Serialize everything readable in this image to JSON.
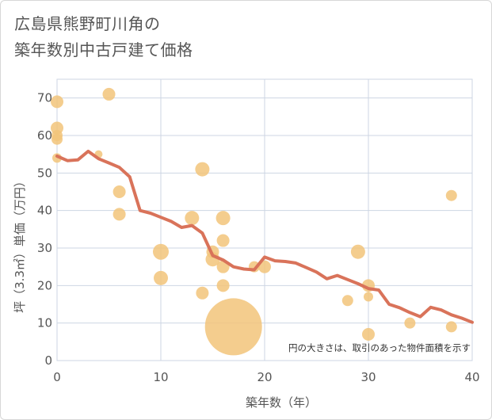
{
  "title_lines": [
    "広島県熊野町川角の",
    "築年数別中古戸建て価格"
  ],
  "chart_data": {
    "type": "scatter",
    "xlabel": "築年数（年）",
    "ylabel": "坪（3.3㎡）単価（万円）",
    "xlim": [
      0,
      40
    ],
    "ylim": [
      0,
      75
    ],
    "xticks": [
      0,
      10,
      20,
      30,
      40
    ],
    "yticks": [
      0,
      10,
      20,
      30,
      40,
      50,
      60,
      70
    ],
    "grid": true,
    "note": "円の大きさは、取引のあった物件面積を示す",
    "colors": {
      "bubble": "#f2c47a",
      "line": "#d9735a",
      "grid": "#cdd6e3"
    },
    "bubbles": [
      {
        "x": 0,
        "y": 69,
        "size": 8
      },
      {
        "x": 0,
        "y": 62,
        "size": 8
      },
      {
        "x": 0,
        "y": 60,
        "size": 7
      },
      {
        "x": 0,
        "y": 59,
        "size": 7
      },
      {
        "x": 0,
        "y": 54,
        "size": 6
      },
      {
        "x": 4,
        "y": 55,
        "size": 5
      },
      {
        "x": 5,
        "y": 71,
        "size": 8
      },
      {
        "x": 6,
        "y": 45,
        "size": 8
      },
      {
        "x": 6,
        "y": 39,
        "size": 8
      },
      {
        "x": 10,
        "y": 29,
        "size": 10
      },
      {
        "x": 10,
        "y": 22,
        "size": 9
      },
      {
        "x": 13,
        "y": 38,
        "size": 9
      },
      {
        "x": 14,
        "y": 51,
        "size": 9
      },
      {
        "x": 14,
        "y": 18,
        "size": 8
      },
      {
        "x": 15,
        "y": 29,
        "size": 8
      },
      {
        "x": 15,
        "y": 27,
        "size": 9
      },
      {
        "x": 16,
        "y": 38,
        "size": 9
      },
      {
        "x": 16,
        "y": 32,
        "size": 8
      },
      {
        "x": 16,
        "y": 25,
        "size": 8
      },
      {
        "x": 16,
        "y": 20,
        "size": 8
      },
      {
        "x": 17,
        "y": 9,
        "size": 36
      },
      {
        "x": 19,
        "y": 25,
        "size": 7
      },
      {
        "x": 20,
        "y": 25,
        "size": 8
      },
      {
        "x": 28,
        "y": 16,
        "size": 7
      },
      {
        "x": 29,
        "y": 29,
        "size": 9
      },
      {
        "x": 30,
        "y": 20,
        "size": 8
      },
      {
        "x": 30,
        "y": 17,
        "size": 6
      },
      {
        "x": 30,
        "y": 7,
        "size": 8
      },
      {
        "x": 34,
        "y": 10,
        "size": 7
      },
      {
        "x": 38,
        "y": 44,
        "size": 7
      },
      {
        "x": 38,
        "y": 9,
        "size": 7
      }
    ],
    "trend_line": {
      "x": [
        0,
        1,
        2,
        3,
        4,
        5,
        6,
        7,
        8,
        9,
        10,
        11,
        12,
        13,
        14,
        15,
        16,
        17,
        18,
        19,
        20,
        21,
        22,
        23,
        24,
        25,
        26,
        27,
        28,
        29,
        30,
        31,
        32,
        33,
        34,
        35,
        36,
        37,
        38,
        39,
        40
      ],
      "y": [
        54.5,
        53.3,
        53.5,
        55.8,
        53.8,
        52.7,
        51.5,
        49,
        40,
        39.3,
        38.2,
        37.1,
        35.5,
        36,
        34,
        28,
        26.8,
        25,
        24.4,
        24.2,
        27.6,
        26.6,
        26.4,
        26,
        24.8,
        23.6,
        21.8,
        22.7,
        21.6,
        20.5,
        19.2,
        18.8,
        15,
        14.1,
        12.8,
        11.7,
        14.2,
        13.5,
        12.2,
        11.3,
        10.2
      ]
    }
  }
}
